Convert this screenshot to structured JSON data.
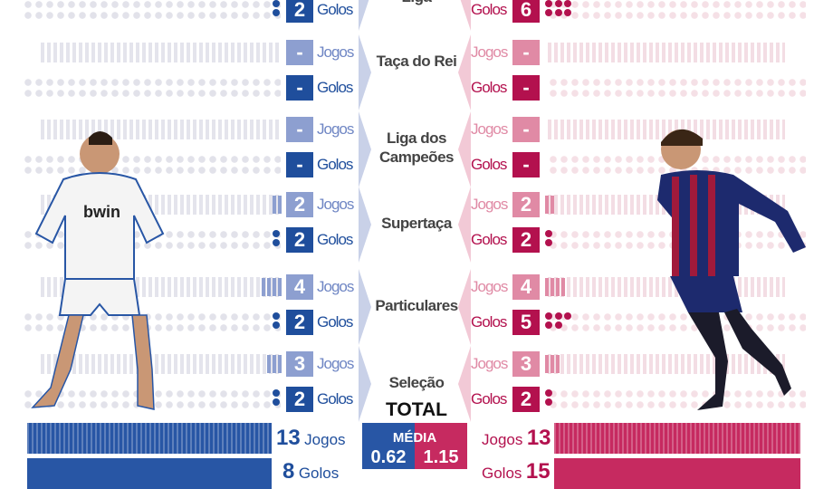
{
  "labels": {
    "jogos": "Jogos",
    "golos": "Golos",
    "total": "TOTAL",
    "media": "MÉDIA"
  },
  "colors": {
    "blue_dark": "#1f4e9c",
    "blue_light": "#8d9fd0",
    "red_dark": "#b3114e",
    "red_light": "#e08aa5"
  },
  "top_partial": {
    "category": "Liga",
    "ronaldo_golos": "2",
    "messi_golos": "6"
  },
  "categories": [
    {
      "label": "Taça do Rei",
      "ronaldo": {
        "jogos": "-",
        "golos": "-"
      },
      "messi": {
        "jogos": "-",
        "golos": "-"
      }
    },
    {
      "label": "Liga dos Campeões",
      "ronaldo": {
        "jogos": "-",
        "golos": "-"
      },
      "messi": {
        "jogos": "-",
        "golos": "-"
      }
    },
    {
      "label": "Supertaça",
      "ronaldo": {
        "jogos": "2",
        "golos": "2"
      },
      "messi": {
        "jogos": "2",
        "golos": "2"
      }
    },
    {
      "label": "Particulares",
      "ronaldo": {
        "jogos": "4",
        "golos": "2"
      },
      "messi": {
        "jogos": "4",
        "golos": "5"
      }
    },
    {
      "label": "Seleção",
      "ronaldo": {
        "jogos": "3",
        "golos": "2"
      },
      "messi": {
        "jogos": "3",
        "golos": "2"
      }
    }
  ],
  "total": {
    "ronaldo": {
      "jogos": "13",
      "golos": "8",
      "media": "0.62"
    },
    "messi": {
      "jogos": "13",
      "golos": "15",
      "media": "1.15"
    }
  },
  "players": {
    "ronaldo_shirt_sponsor": "bwin"
  }
}
